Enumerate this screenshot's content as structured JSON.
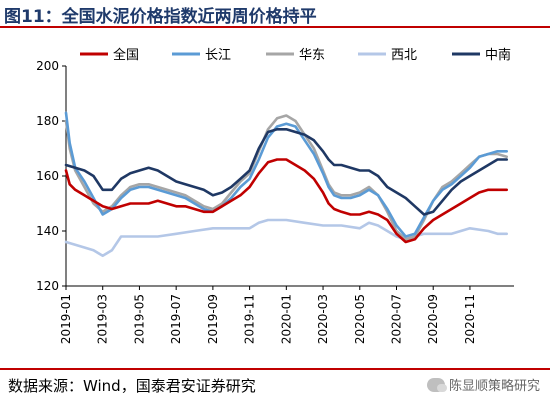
{
  "header": {
    "title": "图11：全国水泥价格指数近两周价格持平"
  },
  "footer": {
    "source": "数据来源：Wind，国泰君安证券研究",
    "watermark": "陈显顺策略研究"
  },
  "chart_data": {
    "type": "line",
    "title": "",
    "xlabel": "",
    "ylabel": "",
    "ylim": [
      120,
      200
    ],
    "yticks": [
      120,
      140,
      160,
      180,
      200
    ],
    "xlim": [
      0,
      24.4
    ],
    "xticks": [
      {
        "pos": 0,
        "label": "2019-01"
      },
      {
        "pos": 2,
        "label": "2019-03"
      },
      {
        "pos": 4,
        "label": "2019-05"
      },
      {
        "pos": 6,
        "label": "2019-07"
      },
      {
        "pos": 8,
        "label": "2019-09"
      },
      {
        "pos": 10,
        "label": "2019-11"
      },
      {
        "pos": 12,
        "label": "2020-01"
      },
      {
        "pos": 14,
        "label": "2020-03"
      },
      {
        "pos": 16,
        "label": "2020-05"
      },
      {
        "pos": 18,
        "label": "2020-07"
      },
      {
        "pos": 20,
        "label": "2020-09"
      },
      {
        "pos": 22,
        "label": "2020-11"
      }
    ],
    "legend_position": "top",
    "series": [
      {
        "name": "全国",
        "color": "#c00000",
        "points": [
          [
            0,
            162
          ],
          [
            0.2,
            157
          ],
          [
            0.5,
            155
          ],
          [
            1,
            153
          ],
          [
            1.5,
            151
          ],
          [
            2,
            149
          ],
          [
            2.5,
            148
          ],
          [
            3,
            149
          ],
          [
            3.5,
            150
          ],
          [
            4,
            150
          ],
          [
            4.5,
            150
          ],
          [
            5,
            151
          ],
          [
            5.5,
            150
          ],
          [
            6,
            149
          ],
          [
            6.5,
            149
          ],
          [
            7,
            148
          ],
          [
            7.5,
            147
          ],
          [
            8,
            147
          ],
          [
            8.5,
            149
          ],
          [
            9,
            151
          ],
          [
            9.5,
            153
          ],
          [
            10,
            156
          ],
          [
            10.5,
            161
          ],
          [
            11,
            165
          ],
          [
            11.5,
            166
          ],
          [
            12,
            166
          ],
          [
            12.5,
            164
          ],
          [
            13,
            162
          ],
          [
            13.5,
            159
          ],
          [
            14,
            154
          ],
          [
            14.3,
            150
          ],
          [
            14.6,
            148
          ],
          [
            15,
            147
          ],
          [
            15.5,
            146
          ],
          [
            16,
            146
          ],
          [
            16.5,
            147
          ],
          [
            17,
            146
          ],
          [
            17.5,
            144
          ],
          [
            18,
            139
          ],
          [
            18.5,
            136
          ],
          [
            19,
            137
          ],
          [
            19.5,
            141
          ],
          [
            20,
            144
          ],
          [
            20.5,
            146
          ],
          [
            21,
            148
          ],
          [
            21.5,
            150
          ],
          [
            22,
            152
          ],
          [
            22.5,
            154
          ],
          [
            23,
            155
          ],
          [
            23.5,
            155
          ],
          [
            24,
            155
          ]
        ]
      },
      {
        "name": "长江",
        "color": "#5b9bd5",
        "points": [
          [
            0,
            183
          ],
          [
            0.2,
            172
          ],
          [
            0.5,
            163
          ],
          [
            1,
            158
          ],
          [
            1.5,
            152
          ],
          [
            2,
            146
          ],
          [
            2.5,
            148
          ],
          [
            3,
            152
          ],
          [
            3.5,
            155
          ],
          [
            4,
            156
          ],
          [
            4.5,
            156
          ],
          [
            5,
            155
          ],
          [
            5.5,
            154
          ],
          [
            6,
            153
          ],
          [
            6.5,
            152
          ],
          [
            7,
            150
          ],
          [
            7.5,
            148
          ],
          [
            8,
            147
          ],
          [
            8.5,
            149
          ],
          [
            9,
            152
          ],
          [
            9.5,
            156
          ],
          [
            10,
            159
          ],
          [
            10.5,
            166
          ],
          [
            11,
            174
          ],
          [
            11.5,
            178
          ],
          [
            12,
            179
          ],
          [
            12.5,
            178
          ],
          [
            13,
            173
          ],
          [
            13.5,
            168
          ],
          [
            14,
            161
          ],
          [
            14.3,
            156
          ],
          [
            14.6,
            153
          ],
          [
            15,
            152
          ],
          [
            15.5,
            152
          ],
          [
            16,
            153
          ],
          [
            16.5,
            155
          ],
          [
            17,
            153
          ],
          [
            17.5,
            148
          ],
          [
            18,
            142
          ],
          [
            18.5,
            138
          ],
          [
            19,
            139
          ],
          [
            19.5,
            145
          ],
          [
            20,
            151
          ],
          [
            20.5,
            155
          ],
          [
            21,
            157
          ],
          [
            21.5,
            160
          ],
          [
            22,
            163
          ],
          [
            22.5,
            167
          ],
          [
            23,
            168
          ],
          [
            23.5,
            169
          ],
          [
            24,
            169
          ]
        ]
      },
      {
        "name": "华东",
        "color": "#a6a6a6",
        "points": [
          [
            0,
            180
          ],
          [
            0.2,
            170
          ],
          [
            0.5,
            162
          ],
          [
            1,
            156
          ],
          [
            1.5,
            150
          ],
          [
            2,
            147
          ],
          [
            2.5,
            149
          ],
          [
            3,
            153
          ],
          [
            3.5,
            156
          ],
          [
            4,
            157
          ],
          [
            4.5,
            157
          ],
          [
            5,
            156
          ],
          [
            5.5,
            155
          ],
          [
            6,
            154
          ],
          [
            6.5,
            153
          ],
          [
            7,
            151
          ],
          [
            7.5,
            149
          ],
          [
            8,
            148
          ],
          [
            8.5,
            150
          ],
          [
            9,
            154
          ],
          [
            9.5,
            158
          ],
          [
            10,
            161
          ],
          [
            10.5,
            169
          ],
          [
            11,
            177
          ],
          [
            11.5,
            181
          ],
          [
            12,
            182
          ],
          [
            12.5,
            180
          ],
          [
            13,
            175
          ],
          [
            13.5,
            170
          ],
          [
            14,
            162
          ],
          [
            14.3,
            157
          ],
          [
            14.6,
            154
          ],
          [
            15,
            153
          ],
          [
            15.5,
            153
          ],
          [
            16,
            154
          ],
          [
            16.5,
            156
          ],
          [
            17,
            153
          ],
          [
            17.5,
            147
          ],
          [
            18,
            140
          ],
          [
            18.5,
            137
          ],
          [
            19,
            138
          ],
          [
            19.5,
            144
          ],
          [
            20,
            151
          ],
          [
            20.5,
            156
          ],
          [
            21,
            158
          ],
          [
            21.5,
            161
          ],
          [
            22,
            164
          ],
          [
            22.5,
            167
          ],
          [
            23,
            168
          ],
          [
            23.5,
            168
          ],
          [
            24,
            167
          ]
        ]
      },
      {
        "name": "西北",
        "color": "#b4c7e7",
        "points": [
          [
            0,
            136
          ],
          [
            0.5,
            135
          ],
          [
            1,
            134
          ],
          [
            1.5,
            133
          ],
          [
            2,
            131
          ],
          [
            2.5,
            133
          ],
          [
            3,
            138
          ],
          [
            3.5,
            138
          ],
          [
            4,
            138
          ],
          [
            5,
            138
          ],
          [
            6,
            139
          ],
          [
            7,
            140
          ],
          [
            8,
            141
          ],
          [
            9,
            141
          ],
          [
            10,
            141
          ],
          [
            10.5,
            143
          ],
          [
            11,
            144
          ],
          [
            12,
            144
          ],
          [
            13,
            143
          ],
          [
            14,
            142
          ],
          [
            15,
            142
          ],
          [
            16,
            141
          ],
          [
            16.5,
            143
          ],
          [
            17,
            142
          ],
          [
            17.5,
            140
          ],
          [
            18,
            138
          ],
          [
            18.5,
            137
          ],
          [
            19,
            138
          ],
          [
            19.5,
            139
          ],
          [
            20,
            139
          ],
          [
            21,
            139
          ],
          [
            21.5,
            140
          ],
          [
            22,
            141
          ],
          [
            23,
            140
          ],
          [
            23.5,
            139
          ],
          [
            24,
            139
          ]
        ]
      },
      {
        "name": "中南",
        "color": "#1f3864",
        "points": [
          [
            0,
            164
          ],
          [
            0.5,
            163
          ],
          [
            1,
            162
          ],
          [
            1.5,
            160
          ],
          [
            2,
            155
          ],
          [
            2.5,
            155
          ],
          [
            3,
            159
          ],
          [
            3.5,
            161
          ],
          [
            4,
            162
          ],
          [
            4.5,
            163
          ],
          [
            5,
            162
          ],
          [
            5.5,
            160
          ],
          [
            6,
            158
          ],
          [
            6.5,
            157
          ],
          [
            7,
            156
          ],
          [
            7.5,
            155
          ],
          [
            8,
            153
          ],
          [
            8.5,
            154
          ],
          [
            9,
            156
          ],
          [
            9.5,
            159
          ],
          [
            10,
            162
          ],
          [
            10.5,
            170
          ],
          [
            11,
            176
          ],
          [
            11.5,
            177
          ],
          [
            12,
            177
          ],
          [
            12.5,
            176
          ],
          [
            13,
            175
          ],
          [
            13.5,
            173
          ],
          [
            14,
            169
          ],
          [
            14.3,
            166
          ],
          [
            14.6,
            164
          ],
          [
            15,
            164
          ],
          [
            15.5,
            163
          ],
          [
            16,
            162
          ],
          [
            16.5,
            162
          ],
          [
            17,
            160
          ],
          [
            17.5,
            156
          ],
          [
            18,
            154
          ],
          [
            18.5,
            152
          ],
          [
            19,
            149
          ],
          [
            19.5,
            146
          ],
          [
            20,
            147
          ],
          [
            20.5,
            151
          ],
          [
            21,
            155
          ],
          [
            21.5,
            158
          ],
          [
            22,
            160
          ],
          [
            22.5,
            162
          ],
          [
            23,
            164
          ],
          [
            23.5,
            166
          ],
          [
            24,
            166
          ]
        ]
      }
    ]
  }
}
